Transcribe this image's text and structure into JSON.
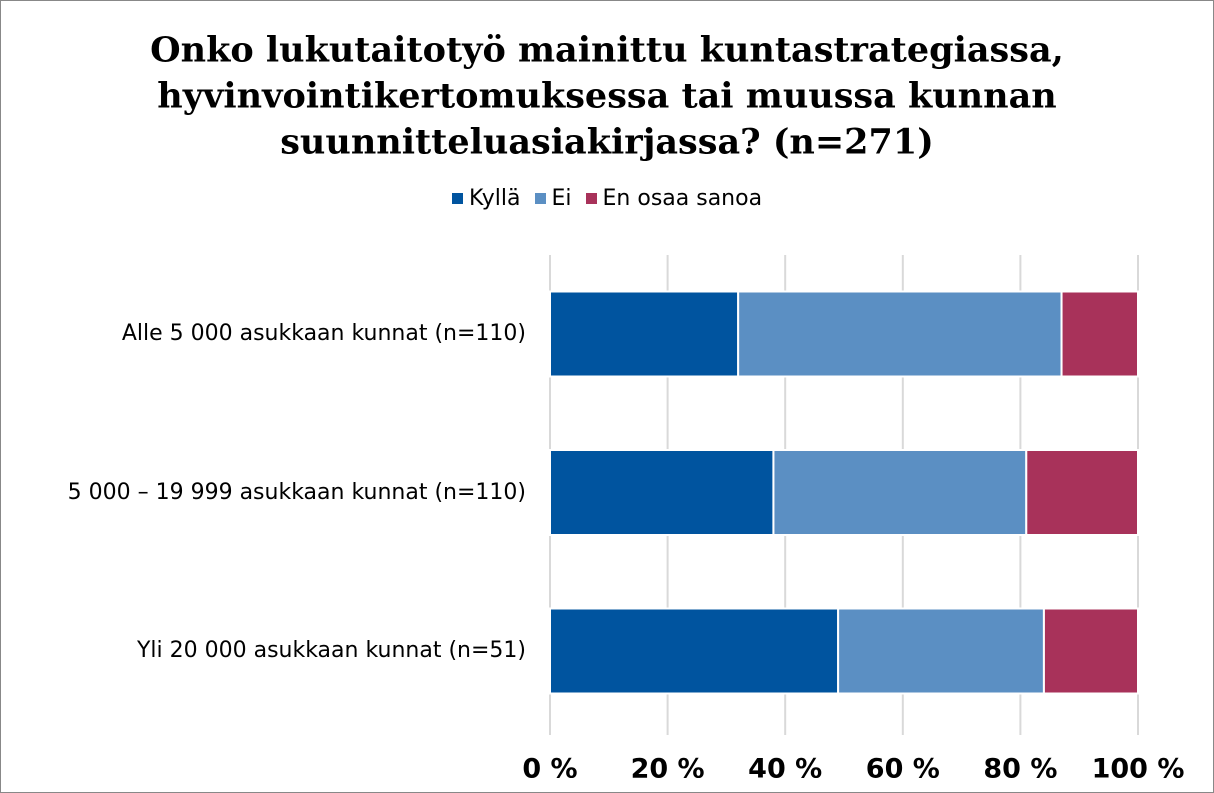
{
  "chart_data": {
    "type": "bar",
    "orientation": "horizontal",
    "stacked": true,
    "title": [
      "Onko lukutaitotyö mainittu kuntastrategiassa,",
      "hyvinvointikertomuksessa tai muussa kunnan",
      "suunnitteluasiakirjassa? (n=271)"
    ],
    "categories": [
      "Alle 5 000 asukkaan kunnat (n=110)",
      "5 000 – 19 999 asukkaan kunnat (n=110)",
      "Yli 20 000 asukkaan kunnat (n=51)"
    ],
    "series": [
      {
        "name": "Kyllä",
        "color": "#00549f",
        "values": [
          32,
          38,
          49
        ]
      },
      {
        "name": "Ei",
        "color": "#5b8fc3",
        "values": [
          55,
          43,
          35
        ]
      },
      {
        "name": "En osaa sanoa",
        "color": "#a8325a",
        "values": [
          13,
          19,
          16
        ]
      }
    ],
    "xlim": [
      0,
      100
    ],
    "xticks": [
      {
        "value": 0,
        "label": "0 %"
      },
      {
        "value": 20,
        "label": "20 %"
      },
      {
        "value": 40,
        "label": "40 %"
      },
      {
        "value": 60,
        "label": "60 %"
      },
      {
        "value": 80,
        "label": "80 %"
      },
      {
        "value": 100,
        "label": "100 %"
      }
    ],
    "grid": true,
    "legend": "top"
  }
}
